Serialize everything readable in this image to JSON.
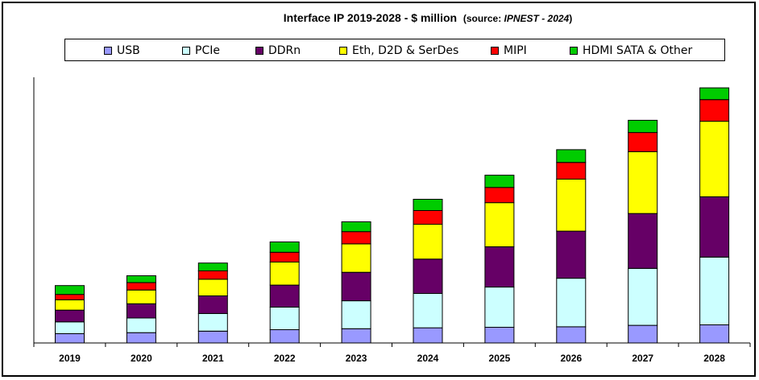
{
  "title": {
    "main": "Interface IP  2019-2028 - $ million",
    "source_prefix": "(source: ",
    "source_name": "IPNEST - 2024",
    "source_suffix": ")"
  },
  "chart_data": {
    "type": "bar",
    "stacked": true,
    "categories": [
      "2019",
      "2020",
      "2021",
      "2022",
      "2023",
      "2024",
      "2025",
      "2026",
      "2027",
      "2028"
    ],
    "series": [
      {
        "name": "USB",
        "color": "#9999ff",
        "values": [
          190,
          210,
          240,
          270,
          290,
          310,
          320,
          330,
          360,
          370
        ]
      },
      {
        "name": "PCIe",
        "color": "#ccffff",
        "values": [
          240,
          300,
          360,
          460,
          570,
          700,
          820,
          990,
          1160,
          1380
        ]
      },
      {
        "name": "DDRn",
        "color": "#660066",
        "values": [
          240,
          290,
          360,
          450,
          580,
          700,
          820,
          960,
          1120,
          1230
        ]
      },
      {
        "name": "Eth, D2D & SerDes",
        "color": "#ffff00",
        "values": [
          210,
          280,
          340,
          470,
          580,
          710,
          900,
          1060,
          1260,
          1540
        ]
      },
      {
        "name": "MIPI",
        "color": "#ff0000",
        "values": [
          110,
          150,
          170,
          200,
          250,
          280,
          310,
          340,
          390,
          440
        ]
      },
      {
        "name": "HDMI SATA & Other",
        "color": "#00cc00",
        "values": [
          180,
          140,
          160,
          210,
          200,
          230,
          250,
          260,
          250,
          240
        ]
      }
    ],
    "ylim": [
      0,
      5350
    ],
    "y_axis_labels_shown": false,
    "grid": false,
    "legend_position": "top"
  }
}
